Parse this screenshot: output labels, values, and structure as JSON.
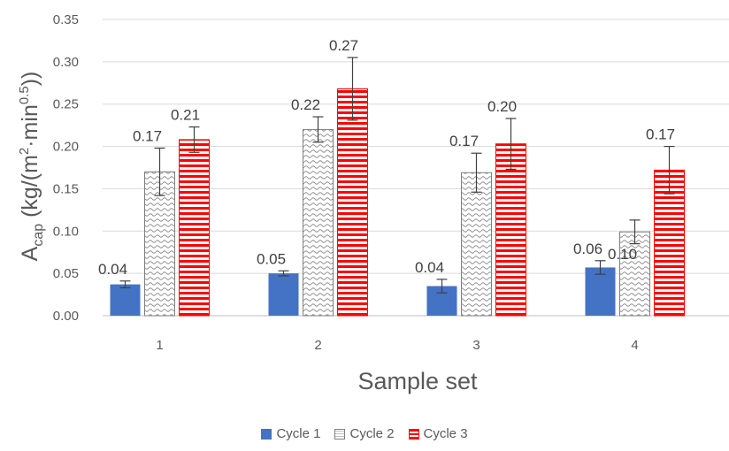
{
  "chart_data": {
    "type": "bar",
    "xlabel": "Sample set",
    "ylabel": {
      "main": "A",
      "sub": "cap",
      "units_pre": " (kg/(m",
      "sup1": "2",
      "units_mid": "·min",
      "sup2": "0.5",
      "units_post": "))"
    },
    "ylim": [
      0,
      0.35
    ],
    "yticks": [
      "0.00",
      "0.05",
      "0.10",
      "0.15",
      "0.20",
      "0.25",
      "0.30",
      "0.35"
    ],
    "grid": true,
    "legend_position": "bottom",
    "categories": [
      "1",
      "2",
      "3",
      "4"
    ],
    "series": [
      {
        "name": "Cycle 1",
        "color": "#4472c4",
        "pattern": "solid",
        "values": [
          0.037,
          0.05,
          0.035,
          0.057
        ],
        "errors": [
          0.004,
          0.003,
          0.008,
          0.008
        ],
        "labels": [
          "0.04",
          "0.05",
          "0.04",
          "0.06"
        ]
      },
      {
        "name": "Cycle 2",
        "color": "#7f7f7f",
        "pattern": "wave",
        "values": [
          0.17,
          0.22,
          0.169,
          0.099
        ],
        "errors": [
          0.028,
          0.015,
          0.023,
          0.014
        ],
        "labels": [
          "0.17",
          "0.22",
          "0.17",
          "0.10"
        ]
      },
      {
        "name": "Cycle 3",
        "color": "#ff0000",
        "pattern": "horizontal-stripes",
        "values": [
          0.208,
          0.268,
          0.203,
          0.172
        ],
        "errors": [
          0.015,
          0.037,
          0.03,
          0.028
        ],
        "labels": [
          "0.21",
          "0.27",
          "0.20",
          "0.17"
        ]
      }
    ]
  }
}
